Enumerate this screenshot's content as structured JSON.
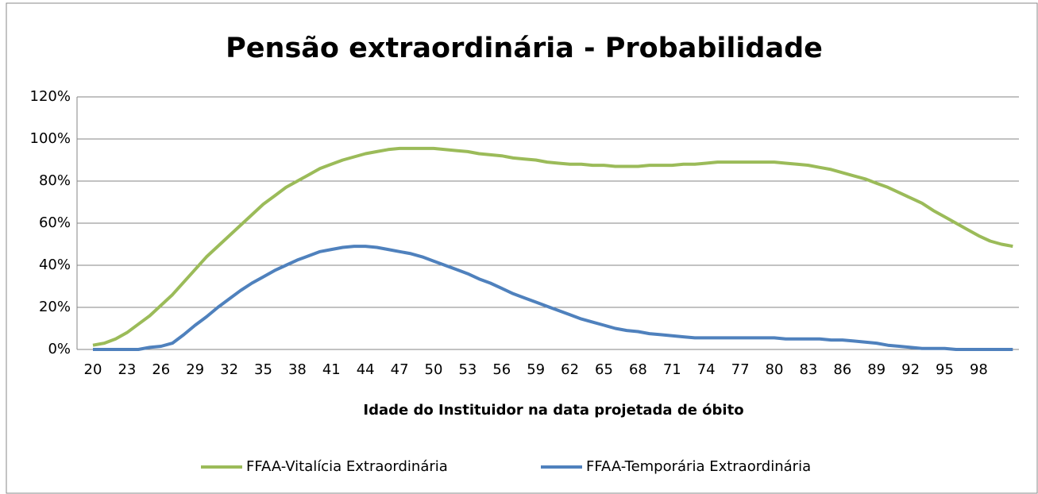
{
  "chart_data": {
    "type": "line",
    "title": "Pensão extraordinária - Probabilidade",
    "x_label": "Idade do Instituidor na data projetada de óbito",
    "categories": [
      "20",
      null,
      null,
      "23",
      null,
      null,
      "26",
      null,
      null,
      "29",
      null,
      null,
      "32",
      null,
      null,
      "35",
      null,
      null,
      "38",
      null,
      null,
      "41",
      null,
      null,
      "44",
      null,
      null,
      "47",
      null,
      null,
      "50",
      null,
      null,
      "53",
      null,
      null,
      "56",
      null,
      null,
      "59",
      null,
      null,
      "62",
      null,
      null,
      "65",
      null,
      null,
      "68",
      null,
      null,
      "71",
      null,
      null,
      "74",
      null,
      null,
      "77",
      null,
      null,
      "80",
      null,
      null,
      "83",
      null,
      null,
      "86",
      null,
      null,
      "89",
      null,
      null,
      "92",
      null,
      null,
      "95",
      null,
      null,
      "98",
      null,
      null,
      null
    ],
    "series": [
      {
        "name": "FFAA-Vitalícia Extraordinária",
        "color": "#9bbb59",
        "values": [
          2,
          3,
          5,
          8,
          12,
          16,
          21,
          26,
          32,
          38,
          44,
          49,
          54,
          59,
          64,
          69,
          73,
          77,
          80,
          83,
          86,
          88,
          90,
          91.5,
          93,
          94,
          95,
          95.5,
          95.5,
          95.5,
          95.5,
          95,
          94.5,
          94,
          93,
          92.5,
          92,
          91,
          90.5,
          90,
          89,
          88.5,
          88,
          88,
          87.5,
          87.5,
          87,
          87,
          87,
          87.5,
          87.5,
          87.5,
          88,
          88,
          88.5,
          89,
          89,
          89,
          89,
          89,
          89,
          88.5,
          88,
          87.5,
          86.5,
          85.5,
          84,
          82.5,
          81,
          79,
          77,
          74.5,
          72,
          69.5,
          66,
          63,
          60,
          57,
          54,
          51.5,
          50,
          49
        ]
      },
      {
        "name": "FFAA-Temporária Extraordinária",
        "color": "#4f81bd",
        "values": [
          0,
          0,
          0,
          0,
          0,
          1,
          1.5,
          3,
          7,
          11.5,
          15.5,
          20,
          24,
          28,
          31.5,
          34.5,
          37.5,
          40,
          42.5,
          44.5,
          46.5,
          47.5,
          48.5,
          49,
          49,
          48.5,
          47.5,
          46.5,
          45.5,
          44,
          42,
          40,
          38,
          36,
          33.5,
          31.5,
          29,
          26.5,
          24.5,
          22.5,
          20.5,
          18.5,
          16.5,
          14.5,
          13,
          11.5,
          10,
          9,
          8.5,
          7.5,
          7,
          6.5,
          6,
          5.5,
          5.5,
          5.5,
          5.5,
          5.5,
          5.5,
          5.5,
          5.5,
          5,
          5,
          5,
          5,
          4.5,
          4.5,
          4,
          3.5,
          3,
          2,
          1.5,
          1,
          0.5,
          0.5,
          0.5,
          0,
          0,
          0,
          0,
          0,
          0
        ]
      }
    ],
    "ylim": [
      0,
      120
    ],
    "yticks": [
      {
        "value": 0,
        "label": "0%"
      },
      {
        "value": 20,
        "label": "20%"
      },
      {
        "value": 40,
        "label": "40%"
      },
      {
        "value": 60,
        "label": "60%"
      },
      {
        "value": 80,
        "label": "80%"
      },
      {
        "value": 100,
        "label": "100%"
      },
      {
        "value": 120,
        "label": "120%"
      }
    ],
    "grid": true,
    "legend": "bottom"
  }
}
